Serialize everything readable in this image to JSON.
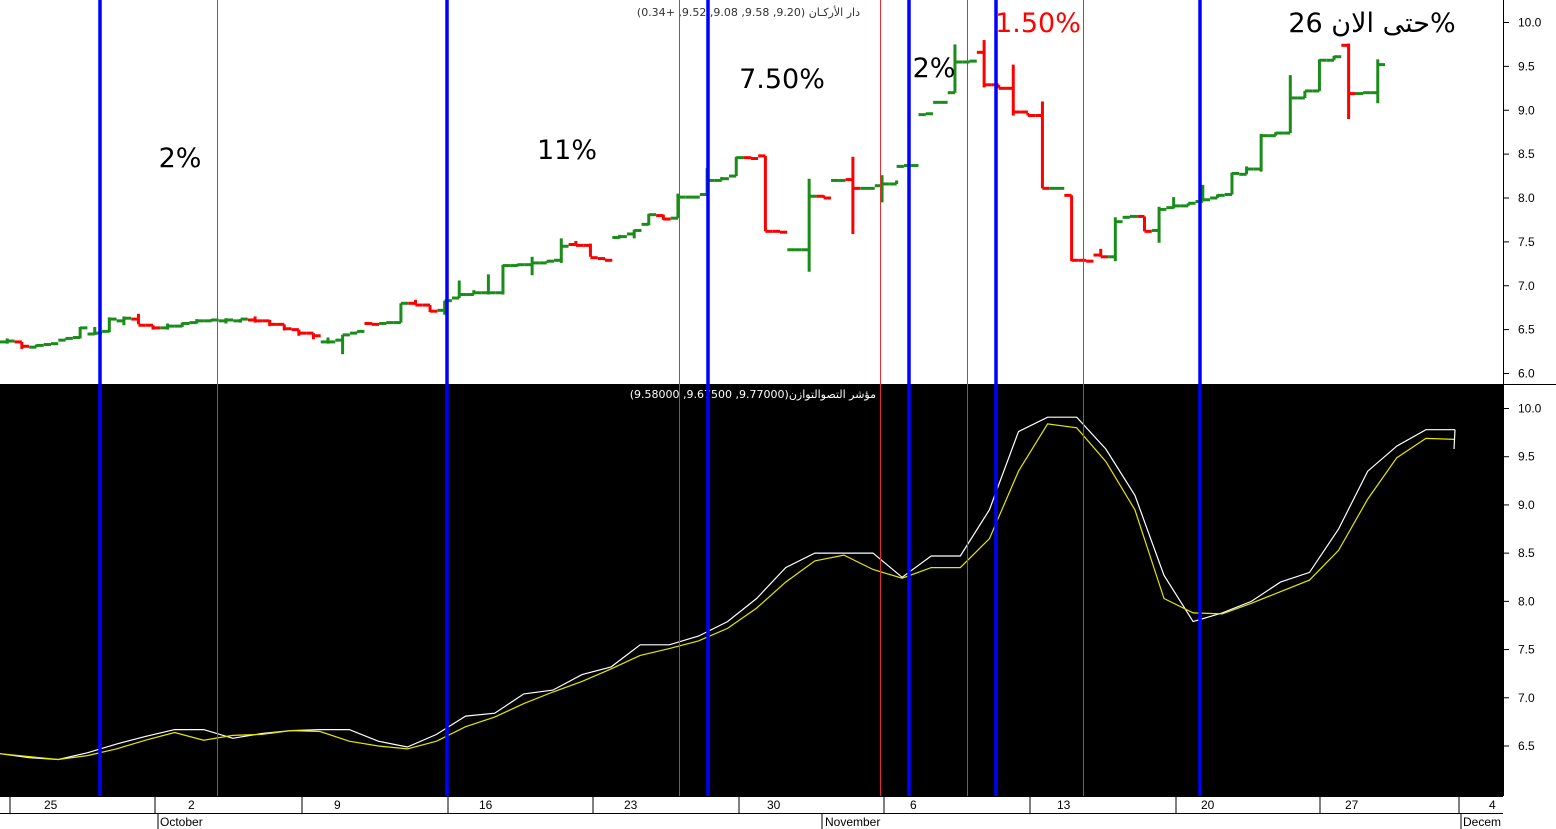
{
  "colors": {
    "up": "#1a8c1a",
    "down": "#ff0000",
    "blue_line": "#0000ff",
    "red_line": "#e03030",
    "fast_line": "#ffffff",
    "slow_line": "#e6e600",
    "lower_bg": "#000000"
  },
  "upper_header": "دار الأركـان (9.20, 9.58, 9.08, 9.52, +0.34)",
  "lower_header": "مؤشر التصوالتوازن(9.77000, 9.67500, 9.58000)",
  "chart_data": [
    {
      "type": "ohlc",
      "yticks": [
        "10.0",
        "9.5",
        "9.0",
        "8.5",
        "8.0",
        "7.5",
        "7.0",
        "6.5",
        "6.0"
      ],
      "ylim": [
        5.98,
        10.25
      ],
      "bars": [
        [
          6.36,
          6.4,
          6.34,
          6.37
        ],
        [
          6.36,
          6.36,
          6.28,
          6.31
        ],
        [
          6.3,
          6.33,
          6.3,
          6.32
        ],
        [
          6.33,
          6.34,
          6.33,
          6.34
        ],
        [
          6.38,
          6.4,
          6.38,
          6.4
        ],
        [
          6.41,
          6.53,
          6.4,
          6.52
        ],
        [
          6.45,
          6.53,
          6.44,
          6.46
        ],
        [
          6.48,
          6.64,
          6.47,
          6.62
        ],
        [
          6.6,
          6.65,
          6.55,
          6.63
        ],
        [
          6.62,
          6.68,
          6.56,
          6.55
        ],
        [
          6.55,
          6.55,
          6.5,
          6.52
        ],
        [
          6.52,
          6.57,
          6.5,
          6.54
        ],
        [
          6.54,
          6.58,
          6.53,
          6.57
        ],
        [
          6.58,
          6.62,
          6.57,
          6.6
        ],
        [
          6.6,
          6.62,
          6.59,
          6.61
        ],
        [
          6.6,
          6.63,
          6.57,
          6.61
        ],
        [
          6.6,
          6.62,
          6.58,
          6.62
        ],
        [
          6.61,
          6.65,
          6.58,
          6.6
        ],
        [
          6.6,
          6.61,
          6.54,
          6.56
        ],
        [
          6.56,
          6.56,
          6.49,
          6.51
        ],
        [
          6.5,
          6.5,
          6.43,
          6.46
        ],
        [
          6.46,
          6.46,
          6.39,
          6.43
        ],
        [
          6.36,
          6.41,
          6.34,
          6.36
        ],
        [
          6.38,
          6.44,
          6.22,
          6.44
        ],
        [
          6.46,
          6.48,
          6.46,
          6.48
        ],
        [
          6.57,
          6.58,
          6.56,
          6.56
        ],
        [
          6.57,
          6.58,
          6.57,
          6.58
        ],
        [
          6.58,
          6.8,
          6.58,
          6.8
        ],
        [
          6.8,
          6.84,
          6.78,
          6.78
        ],
        [
          6.78,
          6.78,
          6.7,
          6.71
        ],
        [
          6.72,
          6.83,
          6.67,
          6.83
        ],
        [
          6.86,
          7.06,
          6.86,
          6.9
        ],
        [
          6.9,
          6.95,
          6.9,
          6.92
        ],
        [
          6.92,
          7.13,
          6.9,
          6.92
        ],
        [
          6.92,
          7.24,
          6.9,
          7.23
        ],
        [
          7.23,
          7.25,
          7.22,
          7.24
        ],
        [
          7.24,
          7.33,
          7.12,
          7.26
        ],
        [
          7.26,
          7.28,
          7.26,
          7.28
        ],
        [
          7.29,
          7.54,
          7.26,
          7.45
        ],
        [
          7.47,
          7.51,
          7.47,
          7.46
        ],
        [
          7.46,
          7.48,
          7.33,
          7.32
        ],
        [
          7.31,
          7.31,
          7.29,
          7.29
        ],
        [
          7.55,
          7.58,
          7.54,
          7.56
        ],
        [
          7.59,
          7.64,
          7.54,
          7.63
        ],
        [
          7.7,
          7.82,
          7.69,
          7.81
        ],
        [
          7.8,
          7.81,
          7.75,
          7.76
        ],
        [
          7.77,
          8.05,
          7.77,
          8.01
        ],
        [
          8.01,
          8.01,
          8.01,
          8.01
        ],
        [
          8.04,
          8.34,
          8.04,
          8.2
        ],
        [
          8.2,
          8.24,
          8.2,
          8.22
        ],
        [
          8.25,
          8.47,
          8.25,
          8.46
        ],
        [
          8.46,
          8.47,
          8.45,
          8.45
        ],
        [
          8.48,
          8.48,
          7.62,
          7.62
        ],
        [
          7.62,
          7.62,
          7.61,
          7.61
        ],
        [
          7.41,
          7.42,
          7.41,
          7.41
        ],
        [
          7.41,
          8.22,
          7.16,
          8.02
        ],
        [
          8.02,
          8.03,
          8.0,
          8.0
        ],
        [
          8.2,
          8.2,
          8.19,
          8.2
        ],
        [
          8.21,
          8.47,
          7.59,
          8.11
        ],
        [
          8.11,
          8.11,
          8.1,
          8.11
        ],
        [
          8.14,
          8.26,
          7.95,
          8.16
        ],
        [
          8.16,
          8.2,
          8.16,
          8.36
        ],
        [
          8.37,
          8.37,
          8.37,
          8.37
        ],
        [
          8.95,
          8.96,
          8.95,
          8.96
        ],
        [
          9.09,
          9.1,
          9.08,
          9.09
        ],
        [
          9.2,
          9.75,
          9.2,
          9.55
        ],
        [
          9.55,
          9.56,
          9.55,
          9.56
        ],
        [
          9.66,
          9.8,
          9.26,
          9.29
        ],
        [
          9.29,
          9.29,
          9.25,
          9.25
        ],
        [
          9.25,
          9.52,
          8.94,
          8.98
        ],
        [
          8.98,
          8.97,
          8.94,
          8.94
        ],
        [
          8.94,
          9.1,
          8.11,
          8.11
        ],
        [
          8.11,
          8.11,
          8.11,
          8.11
        ],
        [
          8.03,
          8.03,
          7.28,
          7.29
        ],
        [
          7.29,
          7.29,
          7.28,
          7.28
        ],
        [
          7.35,
          7.42,
          7.33,
          7.33
        ],
        [
          7.33,
          7.78,
          7.28,
          7.73
        ],
        [
          7.78,
          7.79,
          7.78,
          7.79
        ],
        [
          7.79,
          7.79,
          7.62,
          7.62
        ],
        [
          7.63,
          7.9,
          7.49,
          7.87
        ],
        [
          7.89,
          8.01,
          7.88,
          7.91
        ],
        [
          7.91,
          7.94,
          7.91,
          7.94
        ],
        [
          7.96,
          8.15,
          7.96,
          7.98
        ],
        [
          8.0,
          8.04,
          8.0,
          8.03
        ],
        [
          8.04,
          8.29,
          8.04,
          8.28
        ],
        [
          8.27,
          8.36,
          8.27,
          8.33
        ],
        [
          8.33,
          8.73,
          8.3,
          8.71
        ],
        [
          8.71,
          8.75,
          8.71,
          8.74
        ],
        [
          8.74,
          9.4,
          8.74,
          9.14
        ],
        [
          9.14,
          9.22,
          9.14,
          9.22
        ],
        [
          9.22,
          9.58,
          9.22,
          9.57
        ],
        [
          9.57,
          9.62,
          9.57,
          9.61
        ],
        [
          9.74,
          9.76,
          8.9,
          9.19
        ],
        [
          9.19,
          9.2,
          9.19,
          9.2
        ],
        [
          9.2,
          9.58,
          9.08,
          9.52
        ]
      ],
      "annotations": [
        {
          "text": "2%",
          "color": "black"
        },
        {
          "text": "11%",
          "color": "black"
        },
        {
          "text": "7.50%",
          "color": "black"
        },
        {
          "text": "2%",
          "color": "black"
        },
        {
          "text": "1.50%",
          "color": "red"
        },
        {
          "text": "حتى الان 26%",
          "color": "black"
        }
      ]
    },
    {
      "type": "line",
      "yticks": [
        "10.0",
        "9.5",
        "9.0",
        "8.5",
        "8.0",
        "7.5",
        "7.0",
        "6.5"
      ],
      "ylim": [
        5.98,
        10.12
      ],
      "series": [
        {
          "color": "white",
          "values": [
            6.42,
            6.38,
            6.36,
            6.43,
            6.52,
            6.6,
            6.67,
            6.67,
            6.58,
            6.63,
            6.66,
            6.67,
            6.67,
            6.55,
            6.49,
            6.62,
            6.81,
            6.84,
            7.04,
            7.08,
            7.24,
            7.32,
            7.55,
            7.55,
            7.64,
            7.79,
            8.03,
            8.35,
            8.5,
            8.5,
            8.5,
            8.25,
            8.47,
            8.47,
            8.95,
            9.76,
            9.91,
            9.91,
            9.58,
            9.1,
            8.27,
            7.79,
            7.88,
            8.0,
            8.2,
            8.3,
            8.75,
            9.35,
            9.61,
            9.78,
            9.78
          ]
        },
        {
          "color": "yellow",
          "values": [
            6.42,
            6.39,
            6.36,
            6.4,
            6.47,
            6.56,
            6.64,
            6.56,
            6.61,
            6.62,
            6.66,
            6.65,
            6.55,
            6.5,
            6.47,
            6.55,
            6.7,
            6.8,
            6.94,
            7.06,
            7.17,
            7.3,
            7.44,
            7.51,
            7.59,
            7.72,
            7.93,
            8.2,
            8.42,
            8.48,
            8.33,
            8.24,
            8.35,
            8.35,
            8.65,
            9.35,
            9.84,
            9.8,
            9.45,
            8.95,
            8.03,
            7.88,
            7.87,
            7.98,
            8.1,
            8.22,
            8.53,
            9.06,
            9.49,
            9.69,
            9.68
          ]
        },
        {
          "color": "white",
          "values": [
            9.58
          ]
        }
      ]
    }
  ],
  "x_axis": {
    "day_ticks": [
      "25",
      "2",
      "9",
      "16",
      "23",
      "30",
      "6",
      "13",
      "20",
      "27",
      "4"
    ],
    "month_labels": [
      "October",
      "November",
      "Decem"
    ]
  }
}
